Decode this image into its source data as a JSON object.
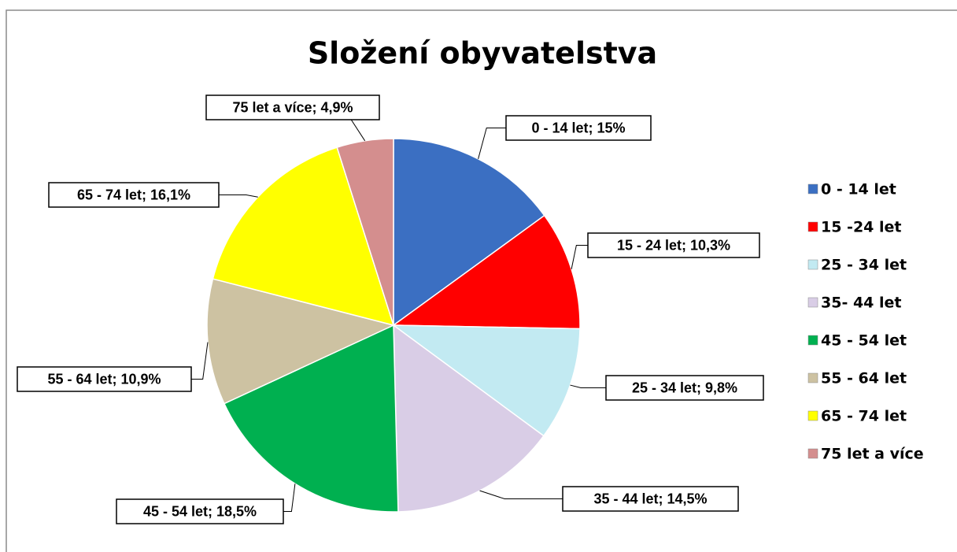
{
  "chart_data": {
    "type": "pie",
    "title": "Složení obyvatelstva",
    "categories": [
      "0 - 14 let",
      "15 -24 let",
      "25 - 34 let",
      "35- 44 let",
      "45 - 54 let",
      "55 - 64 let",
      "65 - 74 let",
      "75  let a více"
    ],
    "values": [
      15,
      10.3,
      9.8,
      14.5,
      18.5,
      10.9,
      16.1,
      4.9
    ],
    "value_labels": [
      "0 - 14 let;  15%",
      "15 - 24 let;  10,3%",
      "25 - 34 let;  9,8%",
      "35 - 44 let;  14,5%",
      "45 - 54 let; 18,5%",
      "55 - 64 let;  10,9%",
      "65 - 74 let;  16,1%",
      "75 let a více; 4,9%"
    ],
    "colors": [
      "#3b6fc2",
      "#ff0000",
      "#c2eaf2",
      "#d9cde6",
      "#00b050",
      "#cdc2a2",
      "#ffff00",
      "#d48e8e"
    ],
    "legend": "right"
  }
}
